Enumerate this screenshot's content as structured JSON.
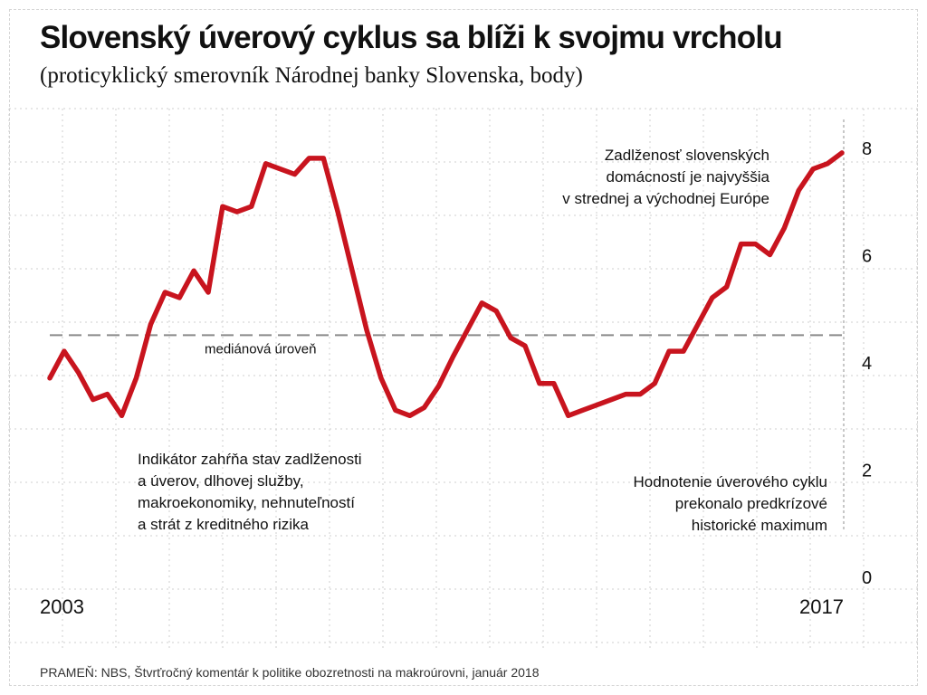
{
  "title": "Slovenský úverový cyklus sa blíži k svojmu vrcholu",
  "subtitle": "(proticyklický smerovník Národnej banky Slovenska, body)",
  "source": "PRAMEŇ: NBS, Štvrťročný komentár k politike obozretnosti na makroúrovni, január 2018",
  "colors": {
    "line": "#c8141e",
    "median": "#8a8a8a",
    "grid": "#cfcfcf"
  },
  "chart_data": {
    "type": "line",
    "x_start_label": "2003",
    "x_end_label": "2017",
    "ylim": [
      0,
      8.2
    ],
    "yticks": [
      0,
      2,
      4,
      6,
      8
    ],
    "grid": true,
    "median": {
      "value": 4.5,
      "label": "mediánová úroveň"
    },
    "series": [
      {
        "values": [
          3.7,
          4.2,
          3.8,
          3.3,
          3.4,
          3.0,
          3.7,
          4.7,
          5.3,
          5.2,
          5.7,
          5.3,
          6.9,
          6.8,
          6.9,
          7.7,
          7.6,
          7.5,
          7.8,
          7.8,
          6.8,
          5.7,
          4.6,
          3.7,
          3.1,
          3.0,
          3.15,
          3.55,
          4.1,
          4.6,
          5.1,
          4.95,
          4.45,
          4.3,
          3.6,
          3.6,
          3.0,
          3.1,
          3.2,
          3.3,
          3.4,
          3.4,
          3.6,
          4.2,
          4.2,
          4.7,
          5.2,
          5.4,
          6.2,
          6.2,
          6.0,
          6.5,
          7.2,
          7.6,
          7.7,
          7.9
        ]
      }
    ],
    "annotations": {
      "top_right": [
        "Zadlženosť slovenských",
        "domácností je najvyššia",
        "v strednej a východnej Európe"
      ],
      "bottom_left": [
        "Indikátor zahŕňa stav zadlženosti",
        "a úverov, dlhovej služby,",
        "makroekonomiky, nehnuteľností",
        "a strát z kreditného rizika"
      ],
      "bottom_right": [
        "Hodnotenie úverového cyklu",
        "prekonalo predkrízové",
        "historické maximum"
      ]
    }
  }
}
